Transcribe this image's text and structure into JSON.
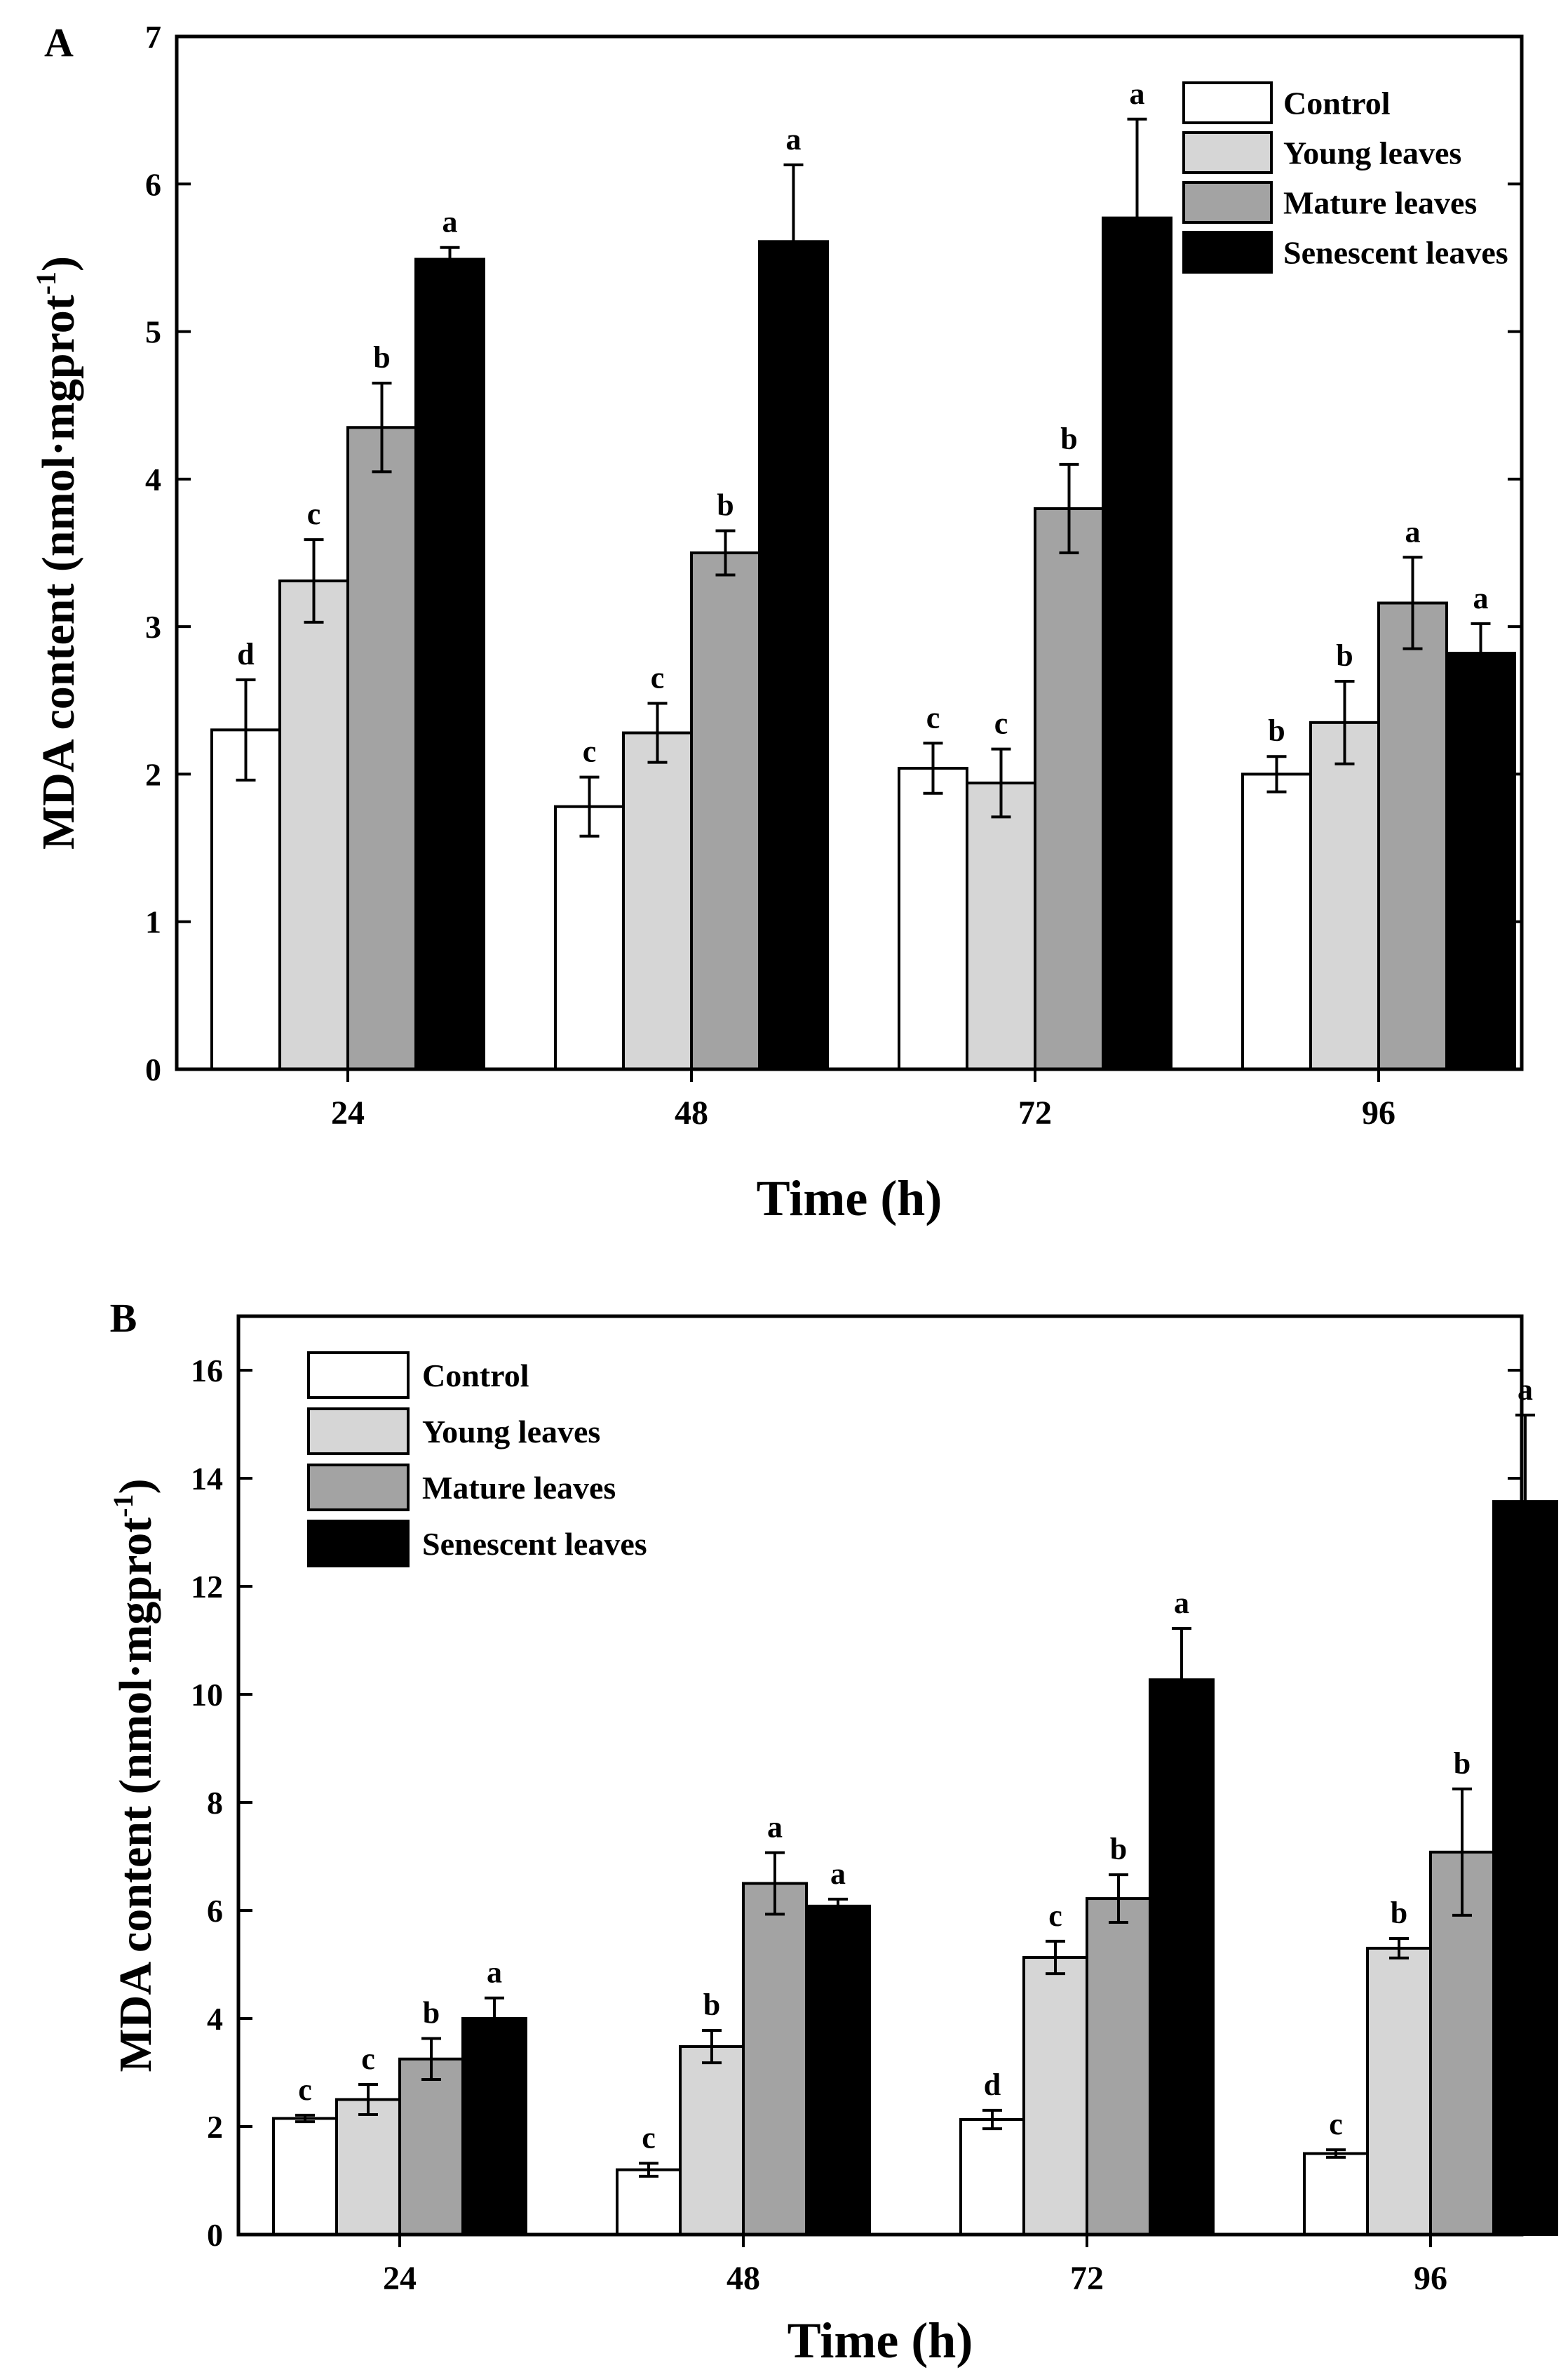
{
  "chart_data": [
    {
      "panel": "A",
      "type": "bar",
      "xlabel": "Time (h)",
      "ylabel": "MDA content (nmol·mgprot",
      "ylabel_sup": "-1",
      "ylabel_close": ")",
      "categories": [
        "24",
        "48",
        "72",
        "96"
      ],
      "ylim": [
        0,
        7
      ],
      "yticks": [
        "0",
        "1",
        "2",
        "3",
        "4",
        "5",
        "6",
        "7"
      ],
      "legend_position": "top-right",
      "series": [
        {
          "name": "Control",
          "color": "#ffffff",
          "values": [
            2.3,
            1.78,
            2.04,
            2.0
          ],
          "errors": [
            0.34,
            0.2,
            0.17,
            0.12
          ],
          "sig": [
            "d",
            "c",
            "c",
            "b"
          ]
        },
        {
          "name": "Young leaves",
          "color": "#d6d6d6",
          "values": [
            3.31,
            2.28,
            1.94,
            2.35
          ],
          "errors": [
            0.28,
            0.2,
            0.23,
            0.28
          ],
          "sig": [
            "c",
            "c",
            "c",
            "b"
          ]
        },
        {
          "name": "Mature leaves",
          "color": "#a3a3a3",
          "values": [
            4.35,
            3.5,
            3.8,
            3.16
          ],
          "errors": [
            0.3,
            0.15,
            0.3,
            0.31
          ],
          "sig": [
            "b",
            "b",
            "b",
            "a"
          ]
        },
        {
          "name": "Senescent leaves",
          "color": "#000000",
          "values": [
            5.49,
            5.61,
            5.77,
            2.82
          ],
          "errors": [
            0.08,
            0.52,
            0.67,
            0.2
          ],
          "sig": [
            "a",
            "a",
            "a",
            "a"
          ]
        }
      ]
    },
    {
      "panel": "B",
      "type": "bar",
      "xlabel": "Time (h)",
      "ylabel": "MDA content (nmol·mgprot",
      "ylabel_sup": "-1",
      "ylabel_close": ")",
      "categories": [
        "24",
        "48",
        "72",
        "96"
      ],
      "ylim": [
        0,
        17
      ],
      "yticks": [
        "0",
        "2",
        "4",
        "6",
        "8",
        "10",
        "12",
        "14",
        "16"
      ],
      "legend_position": "top-left",
      "series": [
        {
          "name": "Control",
          "color": "#ffffff",
          "values": [
            2.15,
            1.2,
            2.13,
            1.5
          ],
          "errors": [
            0.06,
            0.12,
            0.17,
            0.07
          ],
          "sig": [
            "c",
            "c",
            "d",
            "c"
          ]
        },
        {
          "name": "Young leaves",
          "color": "#d6d6d6",
          "values": [
            2.5,
            3.48,
            5.13,
            5.3
          ],
          "errors": [
            0.28,
            0.3,
            0.3,
            0.18
          ],
          "sig": [
            "c",
            "b",
            "c",
            "b"
          ]
        },
        {
          "name": "Mature leaves",
          "color": "#a3a3a3",
          "values": [
            3.25,
            6.5,
            6.22,
            7.08
          ],
          "errors": [
            0.38,
            0.57,
            0.44,
            1.17
          ],
          "sig": [
            "b",
            "a",
            "b",
            "b"
          ]
        },
        {
          "name": "Senescent leaves",
          "color": "#000000",
          "values": [
            4.0,
            6.08,
            10.27,
            13.57
          ],
          "errors": [
            0.38,
            0.13,
            0.95,
            1.6
          ],
          "sig": [
            "a",
            "a",
            "a",
            "a"
          ]
        }
      ]
    }
  ]
}
